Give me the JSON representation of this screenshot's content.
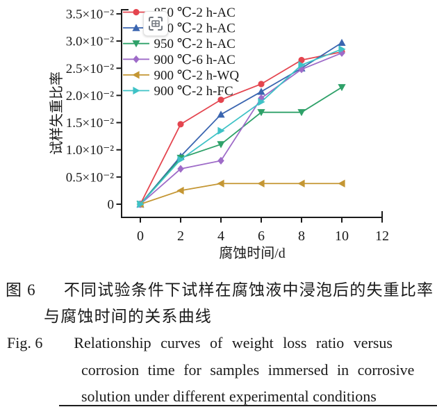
{
  "chart_data": {
    "type": "line",
    "x": [
      0,
      2,
      4,
      6,
      8,
      10
    ],
    "x_ticks": [
      0,
      2,
      4,
      6,
      8,
      10,
      12
    ],
    "xlim": [
      0,
      12
    ],
    "ylim_display": "0 to 3.5e-2",
    "xlabel": "腐蚀时间/d",
    "ylabel": "试样失重比率",
    "y_tick_labels": [
      "0",
      "0.5×10⁻²",
      "1.0×10⁻²",
      "1.5×10⁻²",
      "2.0×10⁻²",
      "2.5×10⁻²",
      "3.0×10⁻²",
      "3.5×10⁻²"
    ],
    "y_tick_values_e2": [
      0,
      0.5,
      1.0,
      1.5,
      2.0,
      2.5,
      3.0,
      3.5
    ],
    "value_unit": "1×10⁻²",
    "grid": "off",
    "legend_position": "top-left-inside",
    "series": [
      {
        "name": "850 ℃-2 h-AC",
        "color": "#e4454f",
        "marker": "circle",
        "values_e2": [
          0,
          1.47,
          1.92,
          2.21,
          2.65,
          2.8
        ]
      },
      {
        "name": "900 ℃-2 h-AC",
        "color": "#3a65b0",
        "marker": "triangle-up",
        "values_e2": [
          0,
          0.88,
          1.65,
          2.07,
          2.5,
          2.97
        ]
      },
      {
        "name": "950 ℃-2 h-AC",
        "color": "#2fa169",
        "marker": "triangle-down",
        "values_e2": [
          0,
          0.85,
          1.1,
          1.69,
          1.69,
          2.15
        ]
      },
      {
        "name": "900 ℃-6 h-AC",
        "color": "#9e6bc8",
        "marker": "diamond",
        "values_e2": [
          0,
          0.65,
          0.8,
          1.95,
          2.48,
          2.78
        ]
      },
      {
        "name": "900 ℃-2 h-WQ",
        "color": "#c49633",
        "marker": "triangle-left",
        "values_e2": [
          0,
          0.25,
          0.38,
          0.38,
          0.38,
          0.38
        ]
      },
      {
        "name": "900 ℃-2 h-FC",
        "color": "#3ec2c6",
        "marker": "triangle-right",
        "values_e2": [
          0,
          0.82,
          1.35,
          1.88,
          2.56,
          2.85
        ]
      }
    ]
  },
  "overlay": {
    "icon": "screenshot-capture-icon"
  },
  "captions": {
    "zh_label": "图 6",
    "zh_line1": "不同试验条件下试样在腐蚀液中浸泡后的失重比率",
    "zh_line2": "与腐蚀时间的关系曲线",
    "en_label": "Fig. 6",
    "en_line1": "Relationship curves of weight loss ratio versus",
    "en_line2": "corrosion time for samples immersed in corrosive",
    "en_line3": "solution under different experimental conditions"
  }
}
